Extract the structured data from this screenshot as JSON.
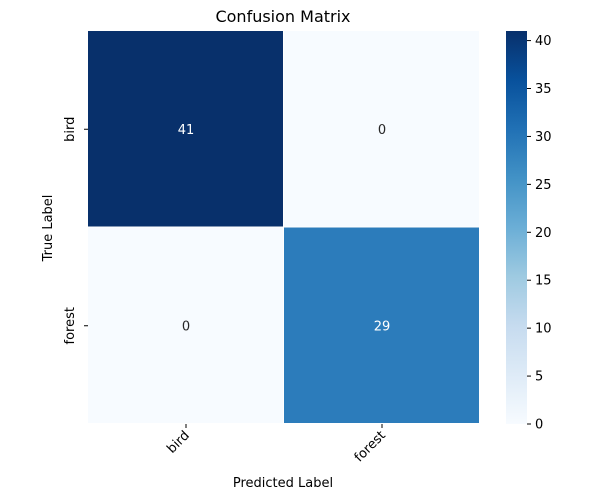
{
  "chart_data": {
    "type": "heatmap",
    "title": "Confusion Matrix",
    "xlabel": "Predicted Label",
    "ylabel": "True Label",
    "x_categories": [
      "bird",
      "forest"
    ],
    "y_categories": [
      "bird",
      "forest"
    ],
    "values": [
      [
        41,
        0
      ],
      [
        0,
        29
      ]
    ],
    "colormap": "Blues",
    "colorbar": {
      "range": [
        0,
        41
      ],
      "ticks": [
        0,
        5,
        10,
        15,
        20,
        25,
        30,
        35,
        40
      ]
    },
    "annotation_colors": {
      "dark_cell": "#ffffff",
      "light_cell": "#262626"
    }
  }
}
